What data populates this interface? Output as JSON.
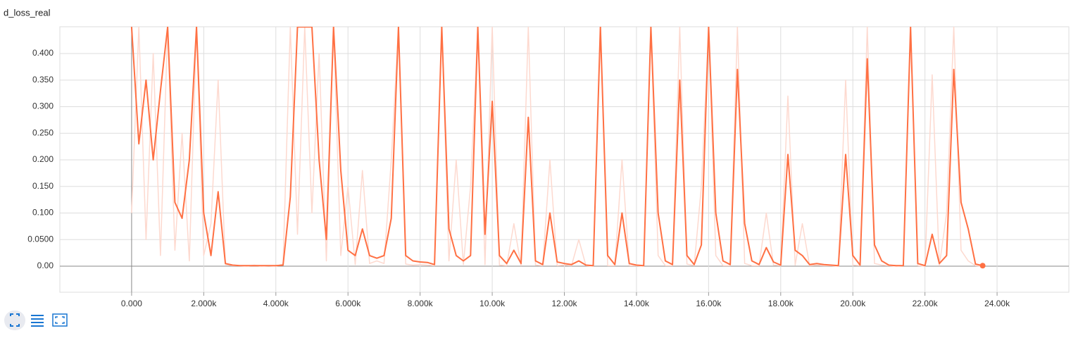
{
  "chart_data": {
    "type": "line",
    "title": "d_loss_real",
    "xlim": [
      -1990,
      25990
    ],
    "ylim": [
      -0.049,
      0.4503
    ],
    "xticks": [
      {
        "value": 0,
        "label": "0.000"
      },
      {
        "value": 2000,
        "label": "2.000k"
      },
      {
        "value": 4000,
        "label": "4.000k"
      },
      {
        "value": 6000,
        "label": "6.000k"
      },
      {
        "value": 8000,
        "label": "8.000k"
      },
      {
        "value": 10000,
        "label": "10.00k"
      },
      {
        "value": 12000,
        "label": "12.00k"
      },
      {
        "value": 14000,
        "label": "14.00k"
      },
      {
        "value": 16000,
        "label": "16.00k"
      },
      {
        "value": 18000,
        "label": "18.00k"
      },
      {
        "value": 20000,
        "label": "20.00k"
      },
      {
        "value": 22000,
        "label": "22.00k"
      },
      {
        "value": 24000,
        "label": "24.00k"
      }
    ],
    "yticks": [
      {
        "value": 0,
        "label": "0.00"
      },
      {
        "value": 0.05,
        "label": "0.0500"
      },
      {
        "value": 0.1,
        "label": "0.100"
      },
      {
        "value": 0.15,
        "label": "0.150"
      },
      {
        "value": 0.2,
        "label": "0.200"
      },
      {
        "value": 0.25,
        "label": "0.250"
      },
      {
        "value": 0.3,
        "label": "0.300"
      },
      {
        "value": 0.35,
        "label": "0.350"
      },
      {
        "value": 0.4,
        "label": "0.400"
      }
    ],
    "grid": true,
    "x": [
      0,
      200,
      400,
      600,
      800,
      1000,
      1200,
      1400,
      1600,
      1800,
      2000,
      2200,
      2400,
      2600,
      2800,
      3000,
      3200,
      3400,
      3600,
      3800,
      4000,
      4200,
      4400,
      4600,
      4800,
      5000,
      5200,
      5400,
      5600,
      5800,
      6000,
      6200,
      6400,
      6600,
      6800,
      7000,
      7200,
      7400,
      7600,
      7800,
      8000,
      8200,
      8400,
      8600,
      8800,
      9000,
      9200,
      9400,
      9600,
      9800,
      10000,
      10200,
      10400,
      10600,
      10800,
      11000,
      11200,
      11400,
      11600,
      11800,
      12000,
      12200,
      12400,
      12600,
      12800,
      13000,
      13200,
      13400,
      13600,
      13800,
      14000,
      14200,
      14400,
      14600,
      14800,
      15000,
      15200,
      15400,
      15600,
      15800,
      16000,
      16200,
      16400,
      16600,
      16800,
      17000,
      17200,
      17400,
      17600,
      17800,
      18000,
      18200,
      18400,
      18600,
      18800,
      19000,
      19200,
      19400,
      19600,
      19800,
      20000,
      20200,
      20400,
      20600,
      20800,
      21000,
      21200,
      21400,
      21600,
      21800,
      22000,
      22200,
      22400,
      22600,
      22800,
      23000,
      23200,
      23400,
      23600
    ],
    "series": [
      {
        "color": "#fdd9cf",
        "values": [
          0.1,
          0.45,
          0.05,
          0.4,
          0.02,
          0.45,
          0.03,
          0.25,
          0.01,
          0.45,
          0.02,
          0.08,
          0.35,
          0.003,
          0.001,
          0.001,
          0.0,
          0.002,
          0.0,
          0.001,
          0.0,
          0.004,
          0.45,
          0.06,
          0.45,
          0.1,
          0.4,
          0.01,
          0.45,
          0.02,
          0.15,
          0.003,
          0.18,
          0.005,
          0.01,
          0.005,
          0.2,
          0.45,
          0.004,
          0.002,
          0.003,
          0.002,
          0.001,
          0.45,
          0.01,
          0.2,
          0.003,
          0.15,
          0.45,
          0.003,
          0.45,
          0.002,
          0.001,
          0.08,
          0.001,
          0.45,
          0.002,
          0.001,
          0.2,
          0.001,
          0.002,
          0.001,
          0.05,
          0.001,
          0.0,
          0.45,
          0.001,
          0.001,
          0.2,
          0.001,
          0.001,
          0.0,
          0.45,
          0.02,
          0.001,
          0.001,
          0.45,
          0.004,
          0.001,
          0.15,
          0.45,
          0.02,
          0.001,
          0.001,
          0.45,
          0.005,
          0.001,
          0.001,
          0.1,
          0.002,
          0.001,
          0.32,
          0.002,
          0.08,
          0.001,
          0.002,
          0.001,
          0.001,
          0.0,
          0.35,
          0.002,
          0.001,
          0.45,
          0.005,
          0.002,
          0.001,
          0.0,
          0.001,
          0.45,
          0.001,
          0.0,
          0.36,
          0.001,
          0.1,
          0.45,
          0.03,
          0.01,
          0.001,
          0.0
        ]
      },
      {
        "color": "#ff7043",
        "values": [
          0.45,
          0.23,
          0.35,
          0.2,
          0.33,
          0.45,
          0.12,
          0.09,
          0.2,
          0.45,
          0.1,
          0.02,
          0.14,
          0.005,
          0.002,
          0.001,
          0.001,
          0.001,
          0.001,
          0.001,
          0.001,
          0.002,
          0.13,
          0.45,
          0.45,
          0.45,
          0.2,
          0.05,
          0.45,
          0.18,
          0.03,
          0.02,
          0.07,
          0.02,
          0.015,
          0.02,
          0.09,
          0.45,
          0.02,
          0.01,
          0.008,
          0.007,
          0.003,
          0.45,
          0.07,
          0.02,
          0.01,
          0.02,
          0.45,
          0.06,
          0.31,
          0.02,
          0.005,
          0.03,
          0.005,
          0.28,
          0.01,
          0.003,
          0.1,
          0.008,
          0.005,
          0.003,
          0.01,
          0.002,
          0.001,
          0.45,
          0.02,
          0.003,
          0.1,
          0.005,
          0.002,
          0.001,
          0.45,
          0.1,
          0.01,
          0.003,
          0.35,
          0.02,
          0.003,
          0.04,
          0.45,
          0.1,
          0.01,
          0.003,
          0.37,
          0.08,
          0.01,
          0.003,
          0.035,
          0.008,
          0.002,
          0.21,
          0.03,
          0.02,
          0.003,
          0.005,
          0.003,
          0.002,
          0.001,
          0.21,
          0.02,
          0.002,
          0.39,
          0.04,
          0.01,
          0.002,
          0.001,
          0.001,
          0.45,
          0.005,
          0.001,
          0.06,
          0.005,
          0.02,
          0.37,
          0.12,
          0.07,
          0.004,
          0.001
        ]
      }
    ]
  }
}
